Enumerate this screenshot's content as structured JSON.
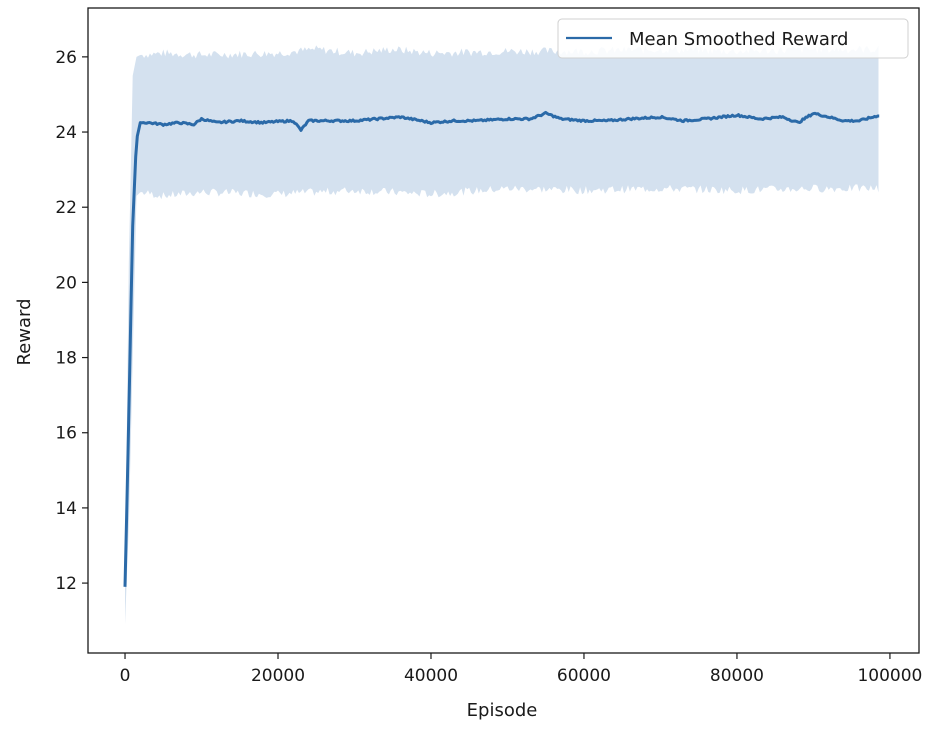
{
  "chart_data": {
    "type": "line",
    "title": "",
    "xlabel": "Episode",
    "ylabel": "Reward",
    "xlim": [
      -4840,
      103800
    ],
    "ylim": [
      10.14,
      27.3
    ],
    "xticks": [
      0,
      20000,
      40000,
      60000,
      80000,
      100000
    ],
    "xtick_labels": [
      "0",
      "20000",
      "40000",
      "60000",
      "80000",
      "100000"
    ],
    "yticks": [
      12,
      14,
      16,
      18,
      20,
      22,
      24,
      26
    ],
    "ytick_labels": [
      "12",
      "14",
      "16",
      "18",
      "20",
      "22",
      "24",
      "26"
    ],
    "grid": false,
    "legend": {
      "position": "upper right",
      "entries": [
        "Mean Smoothed Reward"
      ]
    },
    "colors": {
      "line": "#2b6aa8",
      "band": "#d4e1ef",
      "axes": "#1a1a1a"
    },
    "series": [
      {
        "name": "Mean Smoothed Reward",
        "x": [
          0,
          500,
          1000,
          1500,
          2000,
          3000,
          5000,
          7000,
          9000,
          10000,
          12000,
          15000,
          18000,
          20000,
          22000,
          23000,
          24000,
          26000,
          30000,
          33000,
          36000,
          40000,
          43000,
          46000,
          50000,
          53000,
          55000,
          57000,
          60000,
          63000,
          66000,
          70000,
          73000,
          76000,
          80000,
          83000,
          86000,
          88000,
          90000,
          92000,
          94000,
          96000,
          98700
        ],
        "values": [
          11.9,
          16.5,
          21.5,
          23.8,
          24.25,
          24.25,
          24.2,
          24.25,
          24.2,
          24.35,
          24.25,
          24.3,
          24.25,
          24.28,
          24.3,
          24.05,
          24.3,
          24.3,
          24.3,
          24.35,
          24.4,
          24.25,
          24.3,
          24.3,
          24.35,
          24.35,
          24.5,
          24.35,
          24.3,
          24.3,
          24.35,
          24.4,
          24.3,
          24.35,
          24.45,
          24.35,
          24.4,
          24.25,
          24.5,
          24.4,
          24.3,
          24.3,
          24.45
        ]
      },
      {
        "name": "Std band upper",
        "x": [
          0,
          500,
          1000,
          1500,
          2000,
          5000,
          10000,
          20000,
          25000,
          30000,
          35000,
          40000,
          50000,
          60000,
          70000,
          80000,
          90000,
          98700
        ],
        "values": [
          11.9,
          20.5,
          25.5,
          26.0,
          26.05,
          26.1,
          26.05,
          26.1,
          26.2,
          26.1,
          26.2,
          26.1,
          26.15,
          26.15,
          26.2,
          26.15,
          26.2,
          26.2
        ]
      },
      {
        "name": "Std band lower",
        "x": [
          0,
          500,
          1000,
          1500,
          2000,
          5000,
          10000,
          20000,
          25000,
          30000,
          35000,
          40000,
          50000,
          60000,
          70000,
          80000,
          90000,
          98700
        ],
        "values": [
          10.9,
          13.5,
          18.0,
          22.3,
          22.4,
          22.3,
          22.4,
          22.35,
          22.4,
          22.45,
          22.4,
          22.35,
          22.5,
          22.45,
          22.5,
          22.45,
          22.5,
          22.5
        ]
      }
    ]
  }
}
